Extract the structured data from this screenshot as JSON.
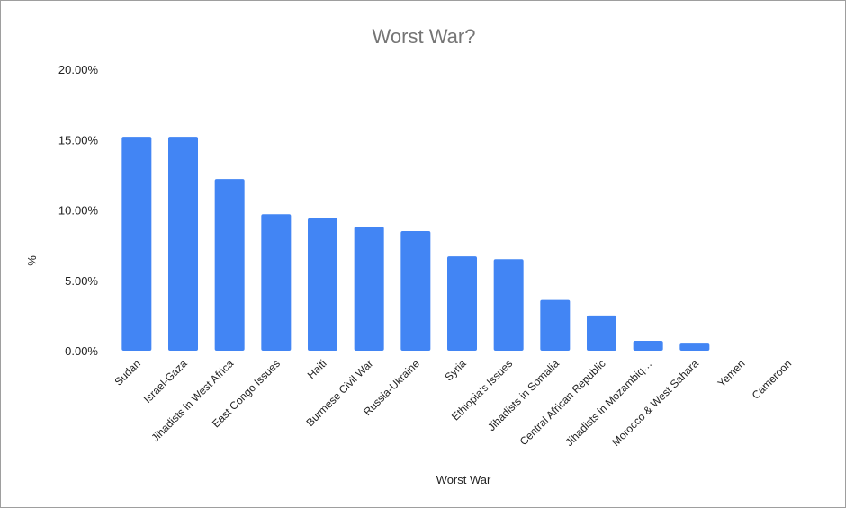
{
  "chart_data": {
    "type": "bar",
    "title": "Worst War?",
    "xlabel": "Worst War",
    "ylabel": "%",
    "ylim": [
      0,
      20
    ],
    "yticks": [
      0,
      5,
      10,
      15,
      20
    ],
    "ytick_labels": [
      "0.00%",
      "5.00%",
      "10.00%",
      "15.00%",
      "20.00%"
    ],
    "categories": [
      "Sudan",
      "Israel-Gaza",
      "Jihadists in West Africa",
      "East Congo Issues",
      "Haiti",
      "Burmese Civil War",
      "Russia-Ukraine",
      "Syria",
      "Ethiopia's Issues",
      "Jihadists in Somalia",
      "Central African Republic",
      "Jihadists in Mozambiq…",
      "Morocco & West Sahara",
      "Yemen",
      "Cameroon"
    ],
    "values": [
      15.2,
      15.2,
      12.2,
      9.7,
      9.4,
      8.8,
      8.5,
      6.7,
      6.5,
      3.6,
      2.5,
      0.7,
      0.5,
      0,
      0
    ],
    "bar_color": "#4285f4",
    "grid": false
  }
}
